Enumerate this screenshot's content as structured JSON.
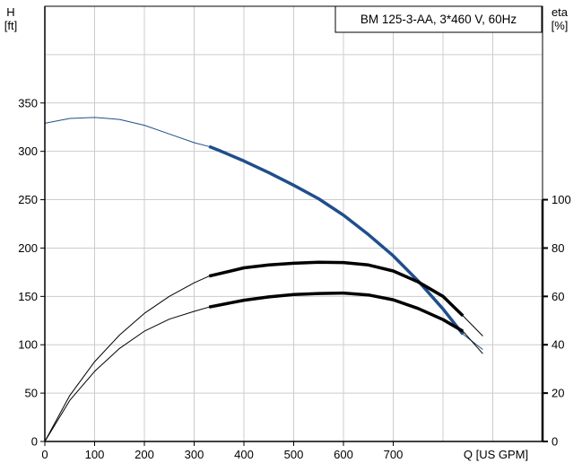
{
  "chart_data": {
    "type": "line",
    "title": "BM 125-3-AA, 3*460 V, 60Hz",
    "xlabel": "Q [US GPM]",
    "ylabel": {
      "line1": "H",
      "line2": "[ft]"
    },
    "y2label": {
      "line1": "eta",
      "line2": "[%]"
    },
    "xlim": [
      0,
      1000
    ],
    "ylim": [
      0,
      450
    ],
    "y2lim": [
      0,
      180
    ],
    "xticks": [
      0,
      100,
      200,
      300,
      400,
      500,
      600,
      700
    ],
    "yticks": [
      0,
      50,
      100,
      150,
      200,
      250,
      300,
      350
    ],
    "y2ticks": [
      0,
      20,
      40,
      60,
      80,
      100
    ],
    "grid": true,
    "series": [
      {
        "axis": "left",
        "color": "#1f4f8b",
        "operating_range": [
          330,
          840
        ],
        "points": [
          [
            0,
            329
          ],
          [
            50,
            334
          ],
          [
            100,
            335
          ],
          [
            150,
            333
          ],
          [
            200,
            327
          ],
          [
            250,
            318
          ],
          [
            300,
            309
          ],
          [
            330,
            305
          ],
          [
            350,
            301
          ],
          [
            400,
            290
          ],
          [
            450,
            278
          ],
          [
            500,
            265
          ],
          [
            550,
            251
          ],
          [
            600,
            234
          ],
          [
            650,
            214
          ],
          [
            700,
            192
          ],
          [
            750,
            166
          ],
          [
            800,
            137
          ],
          [
            840,
            111
          ],
          [
            880,
            95
          ]
        ]
      },
      {
        "axis": "right",
        "color": "#000000",
        "operating_range": [
          330,
          840
        ],
        "points": [
          [
            0,
            0
          ],
          [
            50,
            19
          ],
          [
            100,
            33
          ],
          [
            150,
            44
          ],
          [
            200,
            53
          ],
          [
            250,
            60
          ],
          [
            300,
            65.6
          ],
          [
            330,
            68.4
          ],
          [
            400,
            71.8
          ],
          [
            450,
            73
          ],
          [
            500,
            73.7
          ],
          [
            550,
            74.1
          ],
          [
            600,
            74
          ],
          [
            650,
            73
          ],
          [
            700,
            70.5
          ],
          [
            750,
            66
          ],
          [
            800,
            60
          ],
          [
            840,
            52
          ],
          [
            880,
            43.6
          ]
        ]
      },
      {
        "axis": "right",
        "color": "#000000",
        "operating_range": [
          330,
          840
        ],
        "points": [
          [
            0,
            0
          ],
          [
            50,
            17
          ],
          [
            100,
            29
          ],
          [
            150,
            38.5
          ],
          [
            200,
            45.6
          ],
          [
            250,
            50.6
          ],
          [
            300,
            53.8
          ],
          [
            330,
            55.6
          ],
          [
            400,
            58.4
          ],
          [
            450,
            59.8
          ],
          [
            500,
            60.8
          ],
          [
            550,
            61.2
          ],
          [
            600,
            61.4
          ],
          [
            650,
            60.6
          ],
          [
            700,
            58.6
          ],
          [
            750,
            55
          ],
          [
            800,
            50.4
          ],
          [
            840,
            45.6
          ],
          [
            880,
            36.3
          ]
        ]
      }
    ]
  }
}
